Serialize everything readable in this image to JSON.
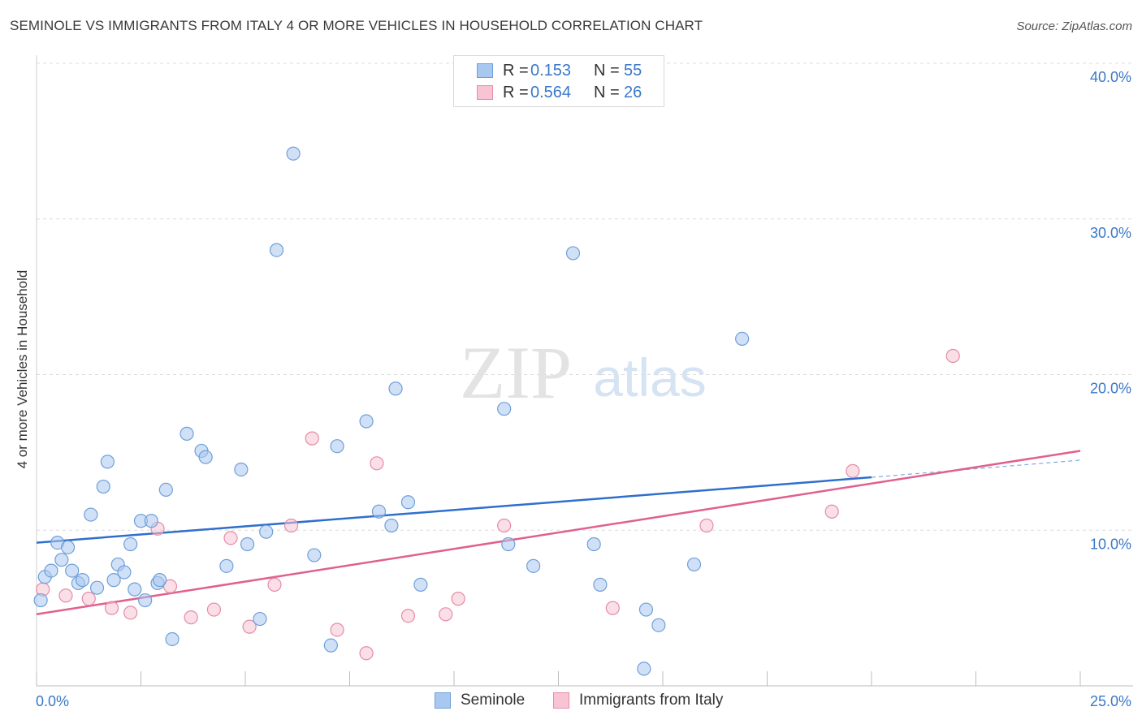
{
  "title": "SEMINOLE VS IMMIGRANTS FROM ITALY 4 OR MORE VEHICLES IN HOUSEHOLD CORRELATION CHART",
  "source": "Source: ZipAtlas.com",
  "watermark": {
    "zip": "ZIP",
    "atlas": "atlas"
  },
  "legend_top": {
    "rows": [
      {
        "r_label": "R =",
        "r_value": "0.153",
        "n_label": "N =",
        "n_value": "55",
        "color": "#a9c8f0",
        "border": "#6f9fd8"
      },
      {
        "r_label": "R =",
        "r_value": "0.564",
        "n_label": "N =",
        "n_value": "26",
        "color": "#f8c4d4",
        "border": "#e68aa8"
      }
    ]
  },
  "legend_bottom": {
    "items": [
      {
        "label": "Seminole",
        "color": "#a9c8f0",
        "border": "#6f9fd8"
      },
      {
        "label": "Immigrants from Italy",
        "color": "#f8c4d4",
        "border": "#e68aa8"
      }
    ]
  },
  "colors": {
    "seminole_fill": "rgba(169,200,240,0.55)",
    "seminole_stroke": "#6f9fd8",
    "seminole_line": "#2f6fcc",
    "italy_fill": "rgba(248,196,212,0.55)",
    "italy_stroke": "#e68aa8",
    "italy_line": "#e0608e",
    "tick_label": "#3a78c9",
    "grid": "#dcdcdc"
  },
  "chart_data": {
    "type": "scatter",
    "title": "SEMINOLE VS IMMIGRANTS FROM ITALY 4 OR MORE VEHICLES IN HOUSEHOLD CORRELATION CHART",
    "xlabel": "",
    "ylabel": "4 or more Vehicles in Household",
    "xlim": [
      0,
      25
    ],
    "ylim": [
      0,
      40
    ],
    "x_tick_labels": [
      "0.0%",
      "25.0%"
    ],
    "y_ticks": [
      10,
      20,
      30,
      40
    ],
    "y_tick_labels": [
      "10.0%",
      "20.0%",
      "30.0%",
      "40.0%"
    ],
    "grid": true,
    "legend": "top-center",
    "series": [
      {
        "name": "Seminole",
        "points": [
          [
            0.1,
            5.5
          ],
          [
            0.2,
            7.0
          ],
          [
            0.35,
            7.4
          ],
          [
            0.5,
            9.2
          ],
          [
            0.6,
            8.1
          ],
          [
            0.75,
            8.9
          ],
          [
            0.85,
            7.4
          ],
          [
            1.0,
            6.6
          ],
          [
            1.1,
            6.8
          ],
          [
            1.3,
            11.0
          ],
          [
            1.45,
            6.3
          ],
          [
            1.6,
            12.8
          ],
          [
            1.7,
            14.4
          ],
          [
            1.85,
            6.8
          ],
          [
            1.95,
            7.8
          ],
          [
            2.1,
            7.3
          ],
          [
            2.25,
            9.1
          ],
          [
            2.35,
            6.2
          ],
          [
            2.5,
            10.6
          ],
          [
            2.6,
            5.5
          ],
          [
            2.75,
            10.6
          ],
          [
            2.9,
            6.6
          ],
          [
            2.95,
            6.8
          ],
          [
            3.1,
            12.6
          ],
          [
            3.25,
            3.0
          ],
          [
            3.6,
            16.2
          ],
          [
            3.95,
            15.1
          ],
          [
            4.05,
            14.7
          ],
          [
            4.55,
            7.7
          ],
          [
            4.9,
            13.9
          ],
          [
            5.05,
            9.1
          ],
          [
            5.35,
            4.3
          ],
          [
            5.5,
            9.9
          ],
          [
            5.75,
            28.0
          ],
          [
            6.15,
            34.2
          ],
          [
            6.65,
            8.4
          ],
          [
            7.05,
            2.6
          ],
          [
            7.2,
            15.4
          ],
          [
            7.9,
            17.0
          ],
          [
            8.2,
            11.2
          ],
          [
            8.5,
            10.3
          ],
          [
            8.6,
            19.1
          ],
          [
            8.9,
            11.8
          ],
          [
            9.2,
            6.5
          ],
          [
            11.2,
            17.8
          ],
          [
            11.3,
            9.1
          ],
          [
            11.9,
            7.7
          ],
          [
            12.85,
            27.8
          ],
          [
            13.35,
            9.1
          ],
          [
            13.5,
            6.5
          ],
          [
            14.6,
            4.9
          ],
          [
            14.9,
            3.9
          ],
          [
            14.55,
            1.1
          ],
          [
            15.75,
            7.8
          ],
          [
            16.9,
            22.3
          ]
        ],
        "trend": {
          "x": [
            0,
            20
          ],
          "y": [
            9.2,
            13.4
          ]
        },
        "trend_extension": {
          "x": [
            20,
            25
          ],
          "y": [
            13.4,
            14.5
          ]
        }
      },
      {
        "name": "Immigrants from Italy",
        "points": [
          [
            0.15,
            6.2
          ],
          [
            0.7,
            5.8
          ],
          [
            1.25,
            5.6
          ],
          [
            1.8,
            5.0
          ],
          [
            2.25,
            4.7
          ],
          [
            2.9,
            10.1
          ],
          [
            3.2,
            6.4
          ],
          [
            3.7,
            4.4
          ],
          [
            4.25,
            4.9
          ],
          [
            4.65,
            9.5
          ],
          [
            5.1,
            3.8
          ],
          [
            5.7,
            6.5
          ],
          [
            6.1,
            10.3
          ],
          [
            6.6,
            15.9
          ],
          [
            7.2,
            3.6
          ],
          [
            7.9,
            2.1
          ],
          [
            8.15,
            14.3
          ],
          [
            8.9,
            4.5
          ],
          [
            9.8,
            4.6
          ],
          [
            10.1,
            5.6
          ],
          [
            11.2,
            10.3
          ],
          [
            13.8,
            5.0
          ],
          [
            16.05,
            10.3
          ],
          [
            19.05,
            11.2
          ],
          [
            19.55,
            13.8
          ],
          [
            21.95,
            21.2
          ]
        ],
        "trend": {
          "x": [
            0,
            25
          ],
          "y": [
            4.6,
            15.1
          ]
        }
      }
    ]
  }
}
